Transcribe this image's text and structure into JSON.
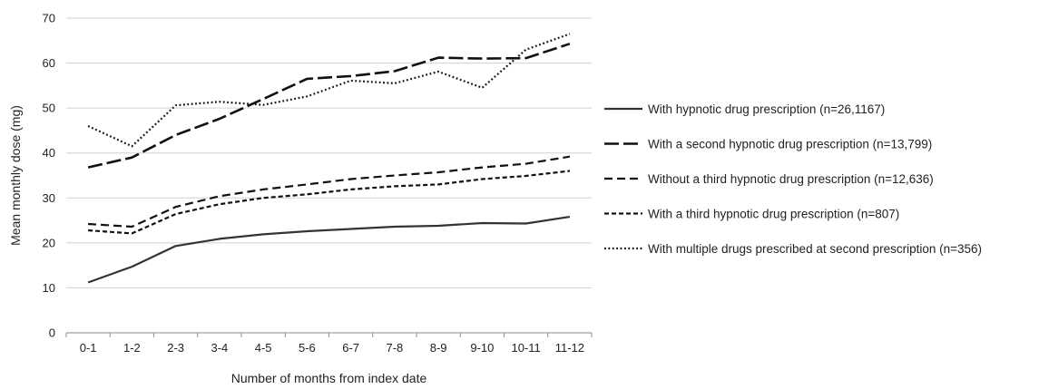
{
  "chart_data": {
    "type": "line",
    "title": "",
    "xlabel": "Number of months from index date",
    "ylabel": "Mean monthly dose (mg)",
    "ylim": [
      0,
      70
    ],
    "yticks": [
      0,
      10,
      20,
      30,
      40,
      50,
      60,
      70
    ],
    "grid": true,
    "legend_position": "right",
    "categories": [
      "0-1",
      "1-2",
      "2-3",
      "3-4",
      "4-5",
      "5-6",
      "6-7",
      "7-8",
      "8-9",
      "9-10",
      "10-11",
      "11-12"
    ],
    "series": [
      {
        "name": "With hypnotic drug prescription (n=26,1167)",
        "style": "solid",
        "color": "#333333",
        "values": [
          11.2,
          14.7,
          19.3,
          20.9,
          21.9,
          22.6,
          23.1,
          23.6,
          23.8,
          24.4,
          24.3,
          25.8
        ]
      },
      {
        "name": "With a second hypnotic drug prescription (n=13,799)",
        "style": "longdash",
        "color": "#111111",
        "values": [
          36.8,
          39.0,
          44.0,
          47.6,
          52.0,
          56.5,
          57.1,
          58.2,
          61.2,
          61.0,
          61.1,
          64.3
        ]
      },
      {
        "name": "Without a third hypnotic drug prescription (n=12,636)",
        "style": "dash",
        "color": "#111111",
        "values": [
          24.2,
          23.6,
          28.0,
          30.4,
          31.9,
          33.0,
          34.2,
          35.0,
          35.7,
          36.8,
          37.6,
          39.2
        ]
      },
      {
        "name": "With a third hypnotic drug prescription (n=807)",
        "style": "shortdash",
        "color": "#111111",
        "values": [
          22.8,
          22.1,
          26.4,
          28.6,
          30.0,
          30.8,
          31.9,
          32.6,
          33.0,
          34.2,
          34.9,
          36.0
        ]
      },
      {
        "name": "With multiple drugs prescribed at second prescription (n=356)",
        "style": "dotted",
        "color": "#111111",
        "values": [
          46.0,
          41.5,
          50.6,
          51.4,
          50.7,
          52.6,
          56.1,
          55.5,
          58.1,
          54.5,
          63.0,
          66.5
        ]
      }
    ]
  }
}
